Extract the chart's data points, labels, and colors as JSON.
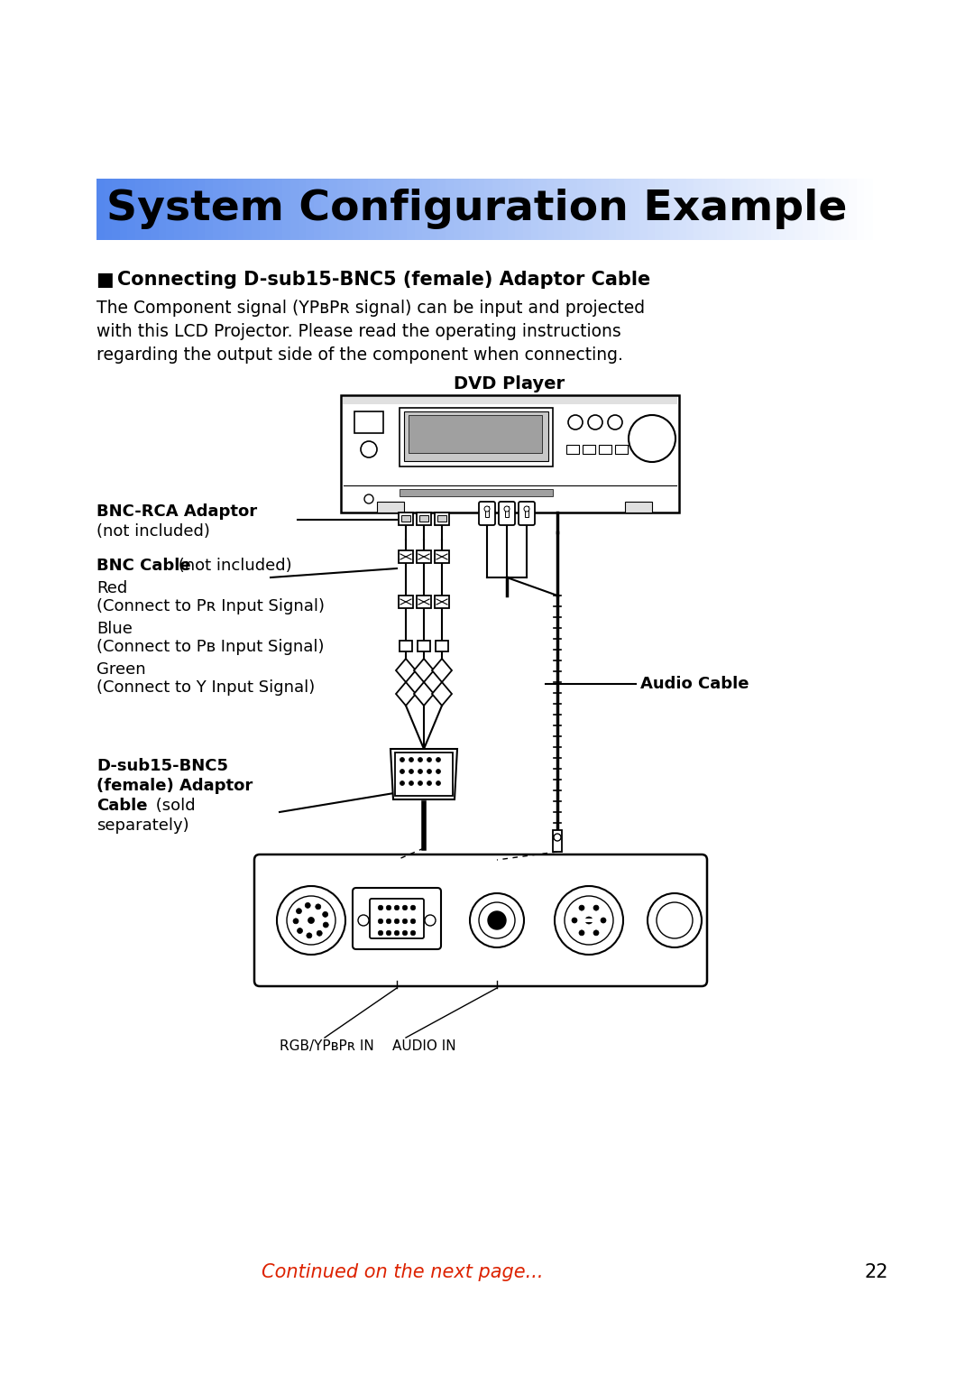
{
  "title": "System Configuration Example",
  "title_bg_left": "#5588EE",
  "title_bg_right": "#FFFFFF",
  "section_heading_bold": "Connecting D-sub15-BNC5 (female) Adaptor Cable",
  "body_line1": "The Component signal (YPʙPʀ signal) can be input and projected",
  "body_line2": "with this LCD Projector. Please read the operating instructions",
  "body_line3": "regarding the output side of the component when connecting.",
  "dvd_label": "DVD Player",
  "bnc_rca_bold": "BNC-RCA Adaptor",
  "bnc_rca_normal": "(not included)",
  "bnc_cable_bold": "BNC Cable",
  "bnc_cable_rest": " (not included)",
  "bnc_line1": "Red",
  "bnc_line2": "(Connect to Pʀ Input Signal)",
  "bnc_line3": "Blue",
  "bnc_line4": "(Connect to Pʙ Input Signal)",
  "bnc_line5": "Green",
  "bnc_line6": "(Connect to Y Input Signal)",
  "dsub_bold1": "D-sub15-BNC5",
  "dsub_bold2": "(female) Adaptor",
  "dsub_bold3": "Cable",
  "dsub_normal": " (sold",
  "dsub_line4": "separately)",
  "audio_cable_label": "Audio Cable",
  "rgb_label": "RGB/YPʙPʀ IN",
  "audio_in_label": "AUDIO IN",
  "continued_text": "Continued on the next page...",
  "page_number": "22",
  "bg_color": "#ffffff"
}
